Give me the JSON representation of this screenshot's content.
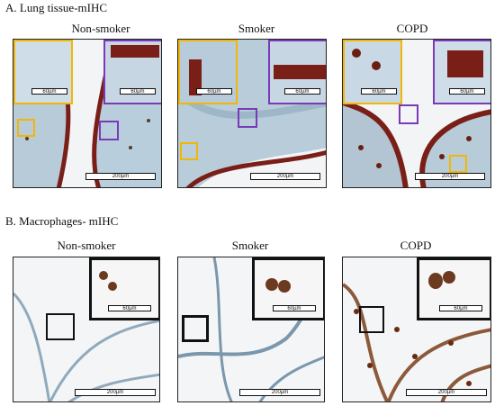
{
  "section_a": {
    "title": "A. Lung tissue-mIHC"
  },
  "section_b": {
    "title": "B. Macrophages- mIHC"
  },
  "columns": [
    "Non-smoker",
    "Smoker",
    "COPD"
  ],
  "scale_large": "200µm",
  "scale_small": "60µm",
  "colors": {
    "yellow": "#f2b705",
    "purple": "#7a3ab8",
    "black": "#111111",
    "brown": "#6b1f12",
    "blue": "#8fb4cf"
  }
}
